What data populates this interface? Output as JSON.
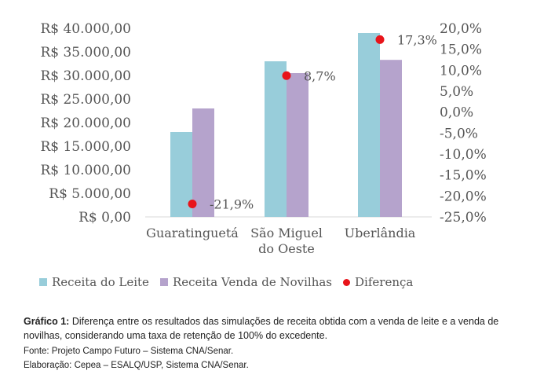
{
  "chart_data": {
    "type": "bar",
    "categories": [
      [
        "Guaratinguetá"
      ],
      [
        "São Miguel",
        "do Oeste"
      ],
      [
        "Uberlândia"
      ]
    ],
    "series": [
      {
        "name": "Receita do Leite",
        "values": [
          18000,
          33000,
          39000
        ],
        "color": "#98CDDA",
        "axis": "left"
      },
      {
        "name": "Receita Venda de Novilhas",
        "values": [
          23000,
          30500,
          33300
        ],
        "color": "#B5A3CC",
        "axis": "left"
      },
      {
        "name": "Diferença",
        "values": [
          -21.9,
          8.7,
          17.3
        ],
        "color": "#E8141A",
        "axis": "right",
        "marker": "dot"
      }
    ],
    "data_labels": [
      "-21,9%",
      "8,7%",
      "17,3%"
    ],
    "y_left": {
      "ylim": [
        0,
        40000
      ],
      "ticks": [
        "R$ 0,00",
        "R$ 5.000,00",
        "R$ 10.000,00",
        "R$ 15.000,00",
        "R$ 20.000,00",
        "R$ 25.000,00",
        "R$ 30.000,00",
        "R$ 35.000,00",
        "R$ 40.000,00"
      ]
    },
    "y_right": {
      "ylim": [
        -25,
        20
      ],
      "ticks": [
        "-25,0%",
        "-20,0%",
        "-15,0%",
        "-10,0%",
        "-5,0%",
        "0,0%",
        "5,0%",
        "10,0%",
        "15,0%",
        "20,0%"
      ]
    },
    "grid": false,
    "legend_position": "bottom"
  },
  "legend": [
    {
      "label": "Receita do Leite",
      "color": "#98CDDA",
      "shape": "square"
    },
    {
      "label": "Receita Venda de Novilhas",
      "color": "#B5A3CC",
      "shape": "square"
    },
    {
      "label": "Diferença",
      "color": "#E8141A",
      "shape": "dot"
    }
  ],
  "caption": {
    "figure_label": "Gráfico 1:",
    "text": "Diferença entre os resultados das simulações de receita obtida com a venda de leite e a venda de novilhas, considerando uma taxa de retenção de 100% do excedente.",
    "source": "Fonte: Projeto Campo Futuro – Sistema CNA/Senar.",
    "credit": "Elaboração: Cepea – ESALQ/USP, Sistema CNA/Senar."
  }
}
